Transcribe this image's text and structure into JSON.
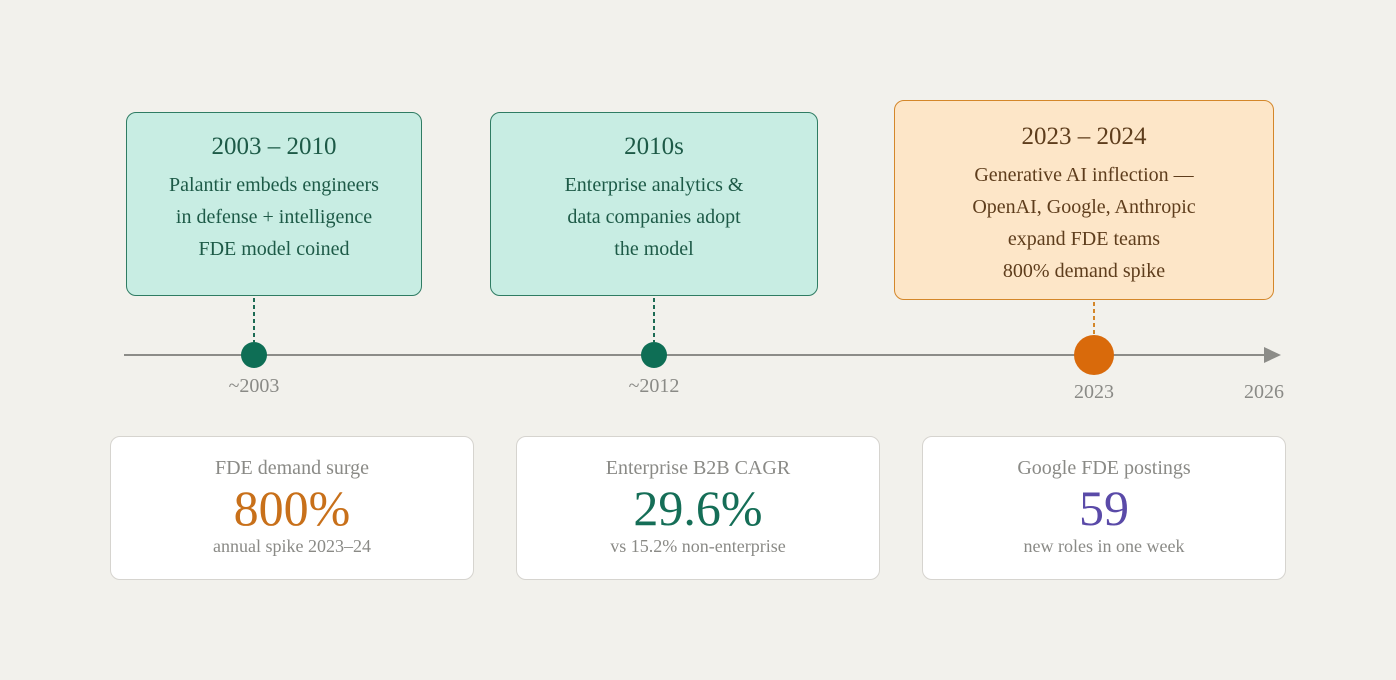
{
  "events": [
    {
      "title": "2003 – 2010",
      "lines": [
        "Palantir embeds engineers",
        "in defense + intelligence",
        "FDE model coined"
      ],
      "marker": "~2003"
    },
    {
      "title": "2010s",
      "lines": [
        "Enterprise analytics &",
        "data companies adopt",
        "the model"
      ],
      "marker": "~2012"
    },
    {
      "title": "2023 – 2024",
      "lines": [
        "Generative AI inflection —",
        "OpenAI, Google, Anthropic",
        "expand FDE teams",
        "800% demand spike"
      ],
      "marker": "2023"
    }
  ],
  "axis_end": "2026",
  "stats": [
    {
      "label": "FDE demand surge",
      "value": "800%",
      "note": "annual spike 2023–24"
    },
    {
      "label": "Enterprise B2B CAGR",
      "value": "29.6%",
      "note": "vs 15.2% non-enterprise"
    },
    {
      "label": "Google FDE postings",
      "value": "59",
      "note": "new roles in one week"
    }
  ]
}
